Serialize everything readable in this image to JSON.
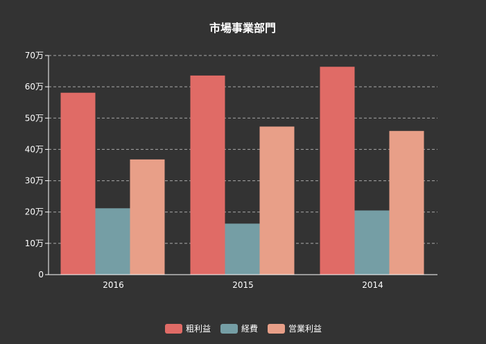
{
  "chart_data": {
    "type": "bar",
    "title": "市場事業部門",
    "categories": [
      "2016",
      "2015",
      "2014"
    ],
    "y_ticks": [
      "0",
      "10万",
      "20万",
      "30万",
      "40万",
      "50万",
      "60万",
      "70万"
    ],
    "ylim": [
      0,
      700000
    ],
    "grid": true,
    "legend_position": "bottom",
    "series": [
      {
        "name": "粗利益",
        "color": "#e06b66",
        "values": [
          581000,
          636000,
          664000
        ]
      },
      {
        "name": "経費",
        "color": "#759ea5",
        "values": [
          212000,
          163000,
          205000
        ]
      },
      {
        "name": "営業利益",
        "color": "#e89f88",
        "values": [
          368000,
          473000,
          459000
        ]
      }
    ]
  }
}
